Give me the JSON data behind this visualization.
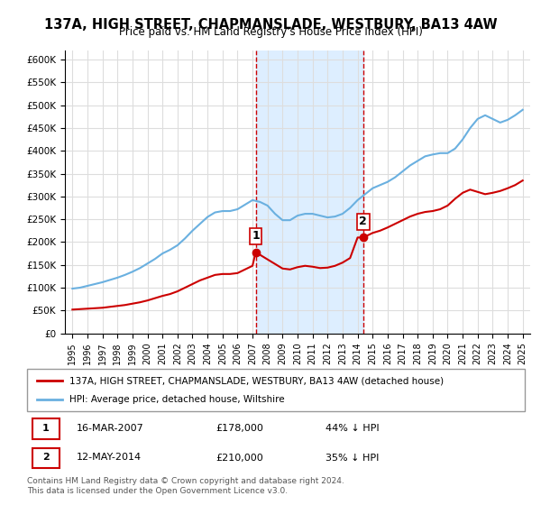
{
  "title": "137A, HIGH STREET, CHAPMANSLADE, WESTBURY, BA13 4AW",
  "subtitle": "Price paid vs. HM Land Registry's House Price Index (HPI)",
  "title_fontsize": 11,
  "subtitle_fontsize": 9.5,
  "background_color": "#ffffff",
  "plot_bg_color": "#ffffff",
  "grid_color": "#dddddd",
  "hpi_color": "#6ab0e0",
  "house_color": "#cc0000",
  "shade_color": "#ddeeff",
  "marker_color": "#cc0000",
  "purchase1_year": 2007.21,
  "purchase1_price": 178000,
  "purchase1_label": "1",
  "purchase1_date": "16-MAR-2007",
  "purchase1_pct": "44% ↓ HPI",
  "purchase2_year": 2014.37,
  "purchase2_price": 210000,
  "purchase2_label": "2",
  "purchase2_date": "12-MAY-2014",
  "purchase2_pct": "35% ↓ HPI",
  "ylim": [
    0,
    620000
  ],
  "yticks": [
    0,
    50000,
    100000,
    150000,
    200000,
    250000,
    300000,
    350000,
    400000,
    450000,
    500000,
    550000,
    600000
  ],
  "ytick_labels": [
    "£0",
    "£50K",
    "£100K",
    "£150K",
    "£200K",
    "£250K",
    "£300K",
    "£350K",
    "£400K",
    "£450K",
    "£500K",
    "£550K",
    "£600K"
  ],
  "xlim": [
    1994.5,
    2025.5
  ],
  "hpi_years": [
    1995,
    1995.5,
    1996,
    1996.5,
    1997,
    1997.5,
    1998,
    1998.5,
    1999,
    1999.5,
    2000,
    2000.5,
    2001,
    2001.5,
    2002,
    2002.5,
    2003,
    2003.5,
    2004,
    2004.5,
    2005,
    2005.5,
    2006,
    2006.5,
    2007,
    2007.5,
    2008,
    2008.5,
    2009,
    2009.5,
    2010,
    2010.5,
    2011,
    2011.5,
    2012,
    2012.5,
    2013,
    2013.5,
    2014,
    2014.5,
    2015,
    2015.5,
    2016,
    2016.5,
    2017,
    2017.5,
    2018,
    2018.5,
    2019,
    2019.5,
    2020,
    2020.5,
    2021,
    2021.5,
    2022,
    2022.5,
    2023,
    2023.5,
    2024,
    2024.5,
    2025
  ],
  "hpi_values": [
    98000,
    100000,
    104000,
    108000,
    112000,
    117000,
    122000,
    128000,
    135000,
    143000,
    153000,
    163000,
    175000,
    183000,
    193000,
    208000,
    225000,
    240000,
    255000,
    265000,
    268000,
    268000,
    272000,
    282000,
    292000,
    288000,
    280000,
    262000,
    248000,
    248000,
    258000,
    262000,
    262000,
    258000,
    254000,
    256000,
    262000,
    275000,
    292000,
    305000,
    318000,
    325000,
    332000,
    342000,
    355000,
    368000,
    378000,
    388000,
    392000,
    395000,
    395000,
    405000,
    425000,
    450000,
    470000,
    478000,
    470000,
    462000,
    468000,
    478000,
    490000
  ],
  "house_years": [
    1995,
    1995.5,
    1996,
    1996.5,
    1997,
    1997.5,
    1998,
    1998.5,
    1999,
    1999.5,
    2000,
    2000.5,
    2001,
    2001.5,
    2002,
    2002.5,
    2003,
    2003.5,
    2004,
    2004.5,
    2005,
    2005.5,
    2006,
    2006.5,
    2007,
    2007.21,
    2007.5,
    2008,
    2008.5,
    2009,
    2009.5,
    2010,
    2010.5,
    2011,
    2011.5,
    2012,
    2012.5,
    2013,
    2013.5,
    2014,
    2014.37,
    2014.5,
    2015,
    2015.5,
    2016,
    2016.5,
    2017,
    2017.5,
    2018,
    2018.5,
    2019,
    2019.5,
    2020,
    2020.5,
    2021,
    2021.5,
    2022,
    2022.5,
    2023,
    2023.5,
    2024,
    2024.5,
    2025
  ],
  "house_values": [
    52000,
    53000,
    54000,
    55000,
    56000,
    58000,
    60000,
    62000,
    65000,
    68000,
    72000,
    77000,
    82000,
    86000,
    92000,
    100000,
    108000,
    116000,
    122000,
    128000,
    130000,
    130000,
    132000,
    140000,
    148000,
    178000,
    172000,
    162000,
    152000,
    142000,
    140000,
    145000,
    148000,
    146000,
    143000,
    144000,
    148000,
    155000,
    165000,
    210000,
    210000,
    212000,
    220000,
    225000,
    232000,
    240000,
    248000,
    256000,
    262000,
    266000,
    268000,
    272000,
    280000,
    295000,
    308000,
    315000,
    310000,
    305000,
    308000,
    312000,
    318000,
    325000,
    335000
  ],
  "xtick_years": [
    1995,
    1996,
    1997,
    1998,
    1999,
    2000,
    2001,
    2002,
    2003,
    2004,
    2005,
    2006,
    2007,
    2008,
    2009,
    2010,
    2011,
    2012,
    2013,
    2014,
    2015,
    2016,
    2017,
    2018,
    2019,
    2020,
    2021,
    2022,
    2023,
    2024,
    2025
  ],
  "legend_red_label": "137A, HIGH STREET, CHAPMANSLADE, WESTBURY, BA13 4AW (detached house)",
  "legend_blue_label": "HPI: Average price, detached house, Wiltshire",
  "annotation1_num": "1",
  "annotation1_date": "16-MAR-2007",
  "annotation1_price": "£178,000",
  "annotation1_pct": "44% ↓ HPI",
  "annotation2_num": "2",
  "annotation2_date": "12-MAY-2014",
  "annotation2_price": "£210,000",
  "annotation2_pct": "35% ↓ HPI",
  "footer": "Contains HM Land Registry data © Crown copyright and database right 2024.\nThis data is licensed under the Open Government Licence v3.0."
}
